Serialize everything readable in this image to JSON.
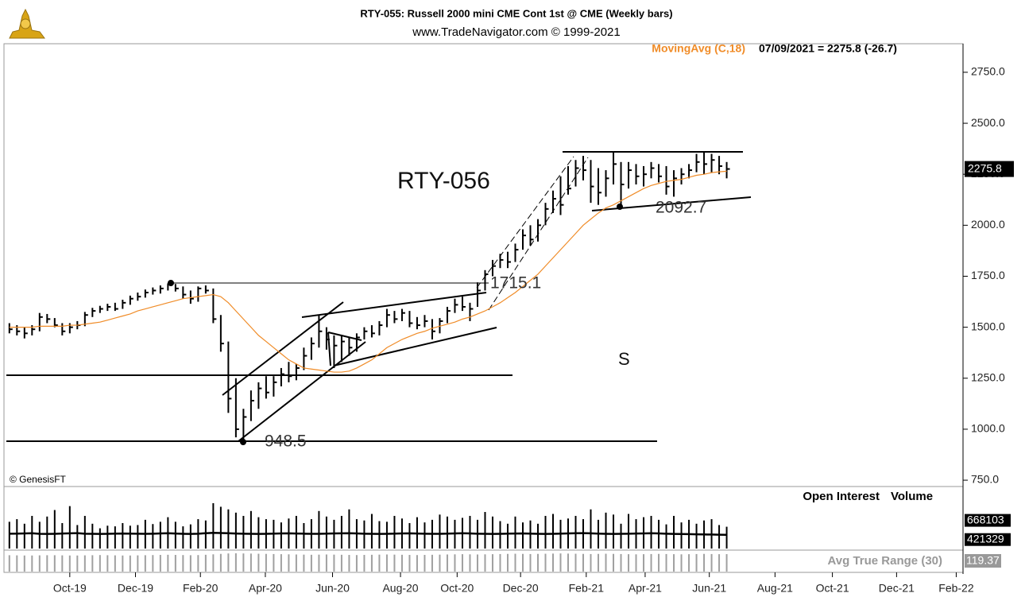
{
  "header": {
    "title": "RTY-055:  Russell 2000 mini CME Cont 1st @ CME  (Weekly bars)",
    "subtitle": "www.TradeNavigator.com © 1999-2021",
    "credit": "© GenesisFT"
  },
  "chart_data": [
    {
      "type": "ohlc",
      "color": "#000000",
      "last_label": "07/09/2021 = 2275.8 (-26.7)",
      "x": [
        0,
        1,
        2,
        3,
        4,
        5,
        6,
        7,
        8,
        9,
        10,
        11,
        12,
        13,
        14,
        15,
        16,
        17,
        18,
        19,
        20,
        21,
        22,
        23,
        24,
        25,
        26,
        27,
        28,
        29,
        30,
        31,
        32,
        33,
        34,
        35,
        36,
        37,
        38,
        39,
        40,
        41,
        42,
        43,
        44,
        45,
        46,
        47,
        48,
        49,
        50,
        51,
        52,
        53,
        54,
        55,
        56,
        57,
        58,
        59,
        60,
        61,
        62,
        63,
        64,
        65,
        66,
        67,
        68,
        69,
        70,
        71,
        72,
        73,
        74,
        75,
        76,
        77,
        78,
        79,
        80,
        81,
        82,
        83,
        84,
        85,
        86,
        87,
        88,
        89,
        90,
        91,
        92,
        93,
        94,
        95
      ],
      "high": [
        1520,
        1510,
        1500,
        1510,
        1570,
        1565,
        1545,
        1520,
        1520,
        1530,
        1575,
        1595,
        1605,
        1615,
        1620,
        1635,
        1655,
        1670,
        1685,
        1695,
        1705,
        1715.1,
        1712,
        1700,
        1680,
        1700,
        1705,
        1690,
        1560,
        1430,
        1250,
        1100,
        1190,
        1230,
        1260,
        1260,
        1300,
        1330,
        1320,
        1400,
        1450,
        1560,
        1500,
        1460,
        1460,
        1450,
        1470,
        1500,
        1510,
        1530,
        1590,
        1580,
        1590,
        1580,
        1550,
        1560,
        1540,
        1545,
        1600,
        1640,
        1650,
        1620,
        1720,
        1780,
        1830,
        1860,
        1870,
        1910,
        1980,
        2000,
        2030,
        2110,
        2170,
        2240,
        2290,
        2320,
        2340,
        2320,
        2280,
        2270,
        2360,
        2310,
        2310,
        2300,
        2290,
        2310,
        2300,
        2290,
        2270,
        2280,
        2300,
        2350,
        2360,
        2350,
        2340,
        2310
      ],
      "low": [
        1470,
        1460,
        1445,
        1460,
        1480,
        1520,
        1500,
        1460,
        1470,
        1490,
        1505,
        1550,
        1570,
        1580,
        1580,
        1590,
        1610,
        1630,
        1645,
        1660,
        1665,
        1680,
        1675,
        1640,
        1615,
        1625,
        1665,
        1520,
        1380,
        1080,
        960,
        948.5,
        1040,
        1100,
        1150,
        1160,
        1210,
        1230,
        1240,
        1290,
        1340,
        1400,
        1390,
        1300,
        1330,
        1360,
        1380,
        1440,
        1450,
        1460,
        1500,
        1520,
        1530,
        1500,
        1490,
        1500,
        1440,
        1470,
        1520,
        1570,
        1580,
        1530,
        1600,
        1680,
        1750,
        1790,
        1790,
        1820,
        1880,
        1900,
        1920,
        2000,
        2060,
        2050,
        2150,
        2190,
        2220,
        2110,
        2100,
        2140,
        2200,
        2092.7,
        2180,
        2200,
        2190,
        2230,
        2210,
        2150,
        2140,
        2200,
        2230,
        2260,
        2250,
        2260,
        2250,
        2230
      ],
      "close": [
        1490,
        1480,
        1470,
        1490,
        1550,
        1540,
        1510,
        1480,
        1500,
        1510,
        1560,
        1580,
        1590,
        1600,
        1590,
        1620,
        1640,
        1650,
        1670,
        1680,
        1690,
        1710,
        1690,
        1660,
        1640,
        1690,
        1680,
        1540,
        1420,
        1150,
        1000,
        1060,
        1140,
        1200,
        1180,
        1230,
        1270,
        1260,
        1300,
        1360,
        1420,
        1480,
        1440,
        1410,
        1430,
        1400,
        1450,
        1480,
        1470,
        1510,
        1560,
        1540,
        1570,
        1520,
        1510,
        1530,
        1480,
        1530,
        1580,
        1610,
        1600,
        1590,
        1680,
        1760,
        1800,
        1830,
        1820,
        1880,
        1950,
        1930,
        2000,
        2080,
        2130,
        2100,
        2180,
        2280,
        2270,
        2190,
        2160,
        2230,
        2300,
        2200,
        2270,
        2240,
        2250,
        2280,
        2240,
        2190,
        2230,
        2250,
        2270,
        2310,
        2300,
        2320,
        2290,
        2275.8
      ],
      "series": [
        {
          "name": "MovingAvg (C,18)",
          "color": "#f08c28",
          "values": [
            1500,
            1500,
            1500,
            1500,
            1505,
            1505,
            1505,
            1505,
            1510,
            1510,
            1515,
            1520,
            1525,
            1535,
            1545,
            1555,
            1565,
            1580,
            1590,
            1600,
            1610,
            1620,
            1630,
            1640,
            1645,
            1650,
            1655,
            1660,
            1650,
            1620,
            1580,
            1540,
            1500,
            1460,
            1430,
            1400,
            1370,
            1340,
            1320,
            1300,
            1295,
            1290,
            1285,
            1280,
            1280,
            1285,
            1300,
            1320,
            1340,
            1370,
            1400,
            1420,
            1440,
            1455,
            1470,
            1480,
            1495,
            1505,
            1515,
            1525,
            1540,
            1550,
            1565,
            1580,
            1600,
            1620,
            1645,
            1670,
            1700,
            1730,
            1760,
            1800,
            1840,
            1880,
            1920,
            1960,
            2000,
            2030,
            2060,
            2085,
            2100,
            2120,
            2140,
            2160,
            2180,
            2195,
            2205,
            2215,
            2220,
            2225,
            2235,
            2245,
            2250,
            2258,
            2262,
            2265
          ]
        }
      ],
      "annotations": [
        "RTY-056",
        "S",
        "1715.1",
        "948.5",
        "2092.7"
      ],
      "xlim": [
        -0.4,
        126.3
      ],
      "xticks": [
        {
          "value": 8.0,
          "label": "Oct-19"
        },
        {
          "value": 16.7,
          "label": "Dec-19"
        },
        {
          "value": 25.3,
          "label": "Feb-20"
        },
        {
          "value": 33.9,
          "label": "Apr-20"
        },
        {
          "value": 42.8,
          "label": "Jun-20"
        },
        {
          "value": 51.8,
          "label": "Aug-20"
        },
        {
          "value": 59.3,
          "label": "Oct-20"
        },
        {
          "value": 67.7,
          "label": "Dec-20"
        },
        {
          "value": 76.4,
          "label": "Feb-21"
        },
        {
          "value": 84.2,
          "label": "Apr-21"
        },
        {
          "value": 92.7,
          "label": "Jun-21"
        },
        {
          "value": 101.4,
          "label": "Aug-21"
        },
        {
          "value": 109.0,
          "label": "Oct-21"
        },
        {
          "value": 117.5,
          "label": "Dec-21"
        },
        {
          "value": 125.4,
          "label": "Feb-22"
        }
      ],
      "ylim": [
        719,
        2890
      ],
      "yticks": [
        {
          "value": 750,
          "label": "750.0"
        },
        {
          "value": 1000,
          "label": "1000.0"
        },
        {
          "value": 1250,
          "label": "1250.0"
        },
        {
          "value": 1500,
          "label": "1500.0"
        },
        {
          "value": 1750,
          "label": "1750.0"
        },
        {
          "value": 2000,
          "label": "2000.0"
        },
        {
          "value": 2250,
          "label": "2250.0"
        },
        {
          "value": 2500,
          "label": "2500.0"
        },
        {
          "value": 2750,
          "label": "2750.0"
        }
      ]
    },
    {
      "type": "volume",
      "ylim": [
        0,
        1900000
      ],
      "series": [
        {
          "name": "Open Interest",
          "color": "#000000",
          "values": [
            455000,
            458000,
            462000,
            470000,
            450000,
            448000,
            452000,
            460000,
            466000,
            472000,
            455000,
            450000,
            448000,
            452000,
            456000,
            460000,
            458000,
            454000,
            450000,
            455000,
            462000,
            468000,
            460000,
            452000,
            448000,
            455000,
            470000,
            480000,
            475000,
            468000,
            460000,
            455000,
            450000,
            448000,
            452000,
            458000,
            462000,
            465000,
            460000,
            455000,
            450000,
            452000,
            456000,
            462000,
            466000,
            470000,
            462000,
            455000,
            450000,
            448000,
            452000,
            458000,
            462000,
            466000,
            460000,
            455000,
            450000,
            452000,
            458000,
            464000,
            470000,
            462000,
            455000,
            450000,
            448000,
            452000,
            456000,
            460000,
            464000,
            458000,
            452000,
            448000,
            450000,
            456000,
            462000,
            468000,
            472000,
            466000,
            458000,
            452000,
            448000,
            450000,
            455000,
            460000,
            464000,
            468000,
            462000,
            455000,
            448000,
            444000,
            440000,
            436000,
            432000,
            428000,
            424000,
            421329
          ]
        },
        {
          "name": "Volume",
          "color": "#000000",
          "values": [
            820000,
            900000,
            760000,
            1000000,
            820000,
            980000,
            1180000,
            780000,
            1300000,
            720000,
            1000000,
            760000,
            620000,
            700000,
            680000,
            780000,
            700000,
            720000,
            880000,
            750000,
            820000,
            960000,
            820000,
            680000,
            740000,
            900000,
            860000,
            1390000,
            1280000,
            1200000,
            1100000,
            1000000,
            1150000,
            960000,
            900000,
            880000,
            800000,
            920000,
            1000000,
            780000,
            900000,
            1150000,
            980000,
            880000,
            1000000,
            1200000,
            900000,
            860000,
            1060000,
            840000,
            820000,
            1000000,
            920000,
            780000,
            960000,
            800000,
            880000,
            1040000,
            980000,
            880000,
            940000,
            1000000,
            880000,
            1120000,
            980000,
            840000,
            760000,
            980000,
            800000,
            860000,
            760000,
            1000000,
            1060000,
            880000,
            920000,
            1000000,
            900000,
            1200000,
            880000,
            1100000,
            1040000,
            760000,
            1060000,
            900000,
            960000,
            1000000,
            880000,
            740000,
            1000000,
            800000,
            880000,
            760000,
            860000,
            900000,
            720000,
            668103
          ]
        }
      ]
    },
    {
      "type": "atr",
      "ylim": [
        0,
        125
      ],
      "series": [
        {
          "name": "Avg True Range (30)",
          "color": "#a0a0a0",
          "values": [
            112,
            111,
            110,
            110,
            111,
            112,
            112,
            111,
            110,
            110,
            111,
            112,
            113,
            112,
            111,
            110,
            110,
            111,
            112,
            113,
            114,
            115,
            114,
            113,
            112,
            113,
            115,
            118,
            121,
            124,
            125,
            124,
            123,
            122,
            121,
            120,
            119,
            118,
            117,
            116,
            115,
            116,
            117,
            116,
            115,
            114,
            113,
            114,
            115,
            116,
            117,
            116,
            115,
            114,
            113,
            114,
            115,
            116,
            117,
            118,
            119,
            118,
            117,
            118,
            119,
            120,
            121,
            122,
            121,
            120,
            121,
            122,
            123,
            124,
            123,
            122,
            121,
            120,
            121,
            122,
            121,
            120,
            119,
            118,
            119,
            120,
            121,
            120,
            119,
            118,
            119,
            120,
            121,
            120,
            119,
            119.37
          ]
        }
      ]
    }
  ]
}
